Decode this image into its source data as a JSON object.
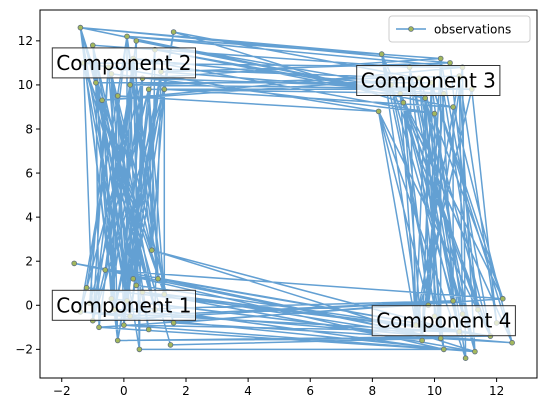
{
  "chart_data": {
    "type": "line",
    "title": "",
    "xlabel": "",
    "ylabel": "",
    "xlim": [
      -2.7,
      13.3
    ],
    "ylim": [
      -3.3,
      13.4
    ],
    "xticks": [
      -2,
      0,
      2,
      4,
      6,
      8,
      10,
      12
    ],
    "yticks": [
      -2,
      0,
      2,
      4,
      6,
      8,
      10,
      12
    ],
    "grid": false,
    "legend": {
      "entries": [
        "observations"
      ],
      "placement": "top-right"
    },
    "series": [
      {
        "name": "observations",
        "color": "#5b9bd1",
        "marker_face": "#a3b85c",
        "marker_edge": "#5f6f7f",
        "clusters": [
          {
            "center": [
              0.0,
              0.0
            ],
            "points": [
              [
                -0.4,
                0.3
              ],
              [
                0.2,
                -0.5
              ],
              [
                0.6,
                0.6
              ],
              [
                -0.8,
                -1.0
              ],
              [
                1.0,
                -0.2
              ],
              [
                -1.2,
                0.8
              ],
              [
                0.3,
                1.2
              ],
              [
                -0.2,
                -1.6
              ],
              [
                1.3,
                0.5
              ],
              [
                -1.4,
                -0.3
              ],
              [
                0.8,
                -1.1
              ],
              [
                0.1,
                0.2
              ],
              [
                -0.6,
                1.6
              ],
              [
                1.6,
                -0.8
              ],
              [
                -1.0,
                -0.7
              ],
              [
                0.5,
                -2.0
              ],
              [
                -1.6,
                1.9
              ],
              [
                0.9,
                2.5
              ],
              [
                0.0,
                -0.9
              ],
              [
                1.5,
                -1.8
              ],
              [
                -1.1,
                0.1
              ],
              [
                0.4,
                0.9
              ],
              [
                -0.3,
                -0.2
              ],
              [
                1.1,
                1.2
              ]
            ]
          },
          {
            "center": [
              0.0,
              10.5
            ],
            "points": [
              [
                -0.5,
                10.8
              ],
              [
                0.3,
                11.2
              ],
              [
                -1.4,
                12.6
              ],
              [
                0.8,
                9.8
              ],
              [
                -0.9,
                10.1
              ],
              [
                1.2,
                10.6
              ],
              [
                0.1,
                12.2
              ],
              [
                -0.2,
                9.5
              ],
              [
                1.6,
                12.4
              ],
              [
                -1.3,
                11.0
              ],
              [
                0.6,
                10.3
              ],
              [
                -0.7,
                9.3
              ],
              [
                1.0,
                11.6
              ],
              [
                0.2,
                10.0
              ],
              [
                -1.0,
                11.8
              ],
              [
                1.3,
                9.8
              ],
              [
                0.4,
                12.0
              ],
              [
                -0.4,
                10.5
              ]
            ]
          },
          {
            "center": [
              10.0,
              10.0
            ],
            "points": [
              [
                9.5,
                10.3
              ],
              [
                10.3,
                9.6
              ],
              [
                8.3,
                11.4
              ],
              [
                10.9,
                10.8
              ],
              [
                9.0,
                9.2
              ],
              [
                10.6,
                9.0
              ],
              [
                8.2,
                8.8
              ],
              [
                10.2,
                11.2
              ],
              [
                11.2,
                9.8
              ],
              [
                9.7,
                9.4
              ],
              [
                8.6,
                10.0
              ],
              [
                10.8,
                10.4
              ],
              [
                9.2,
                10.8
              ],
              [
                10.0,
                8.7
              ],
              [
                8.9,
                9.6
              ],
              [
                10.5,
                11.0
              ],
              [
                9.9,
                10.1
              ]
            ]
          },
          {
            "center": [
              10.5,
              -0.8
            ],
            "points": [
              [
                10.0,
                -0.5
              ],
              [
                10.8,
                -1.2
              ],
              [
                12.2,
                0.3
              ],
              [
                9.6,
                -1.6
              ],
              [
                11.4,
                -0.2
              ],
              [
                10.3,
                -2.0
              ],
              [
                12.5,
                -1.7
              ],
              [
                9.8,
                0.0
              ],
              [
                11.0,
                -2.4
              ],
              [
                10.6,
                0.2
              ],
              [
                11.8,
                -1.4
              ],
              [
                9.4,
                -0.9
              ],
              [
                12.0,
                -0.8
              ],
              [
                10.2,
                -1.5
              ],
              [
                11.3,
                -2.1
              ],
              [
                10.9,
                -0.4
              ]
            ]
          }
        ]
      }
    ],
    "annotations": [
      {
        "text": "Component 1",
        "anchor": [
          0.0,
          0.0
        ]
      },
      {
        "text": "Component 2",
        "anchor": [
          0.0,
          11.0
        ]
      },
      {
        "text": "Component 3",
        "anchor": [
          9.8,
          10.2
        ]
      },
      {
        "text": "Component 4",
        "anchor": [
          10.3,
          -0.7
        ]
      }
    ]
  }
}
